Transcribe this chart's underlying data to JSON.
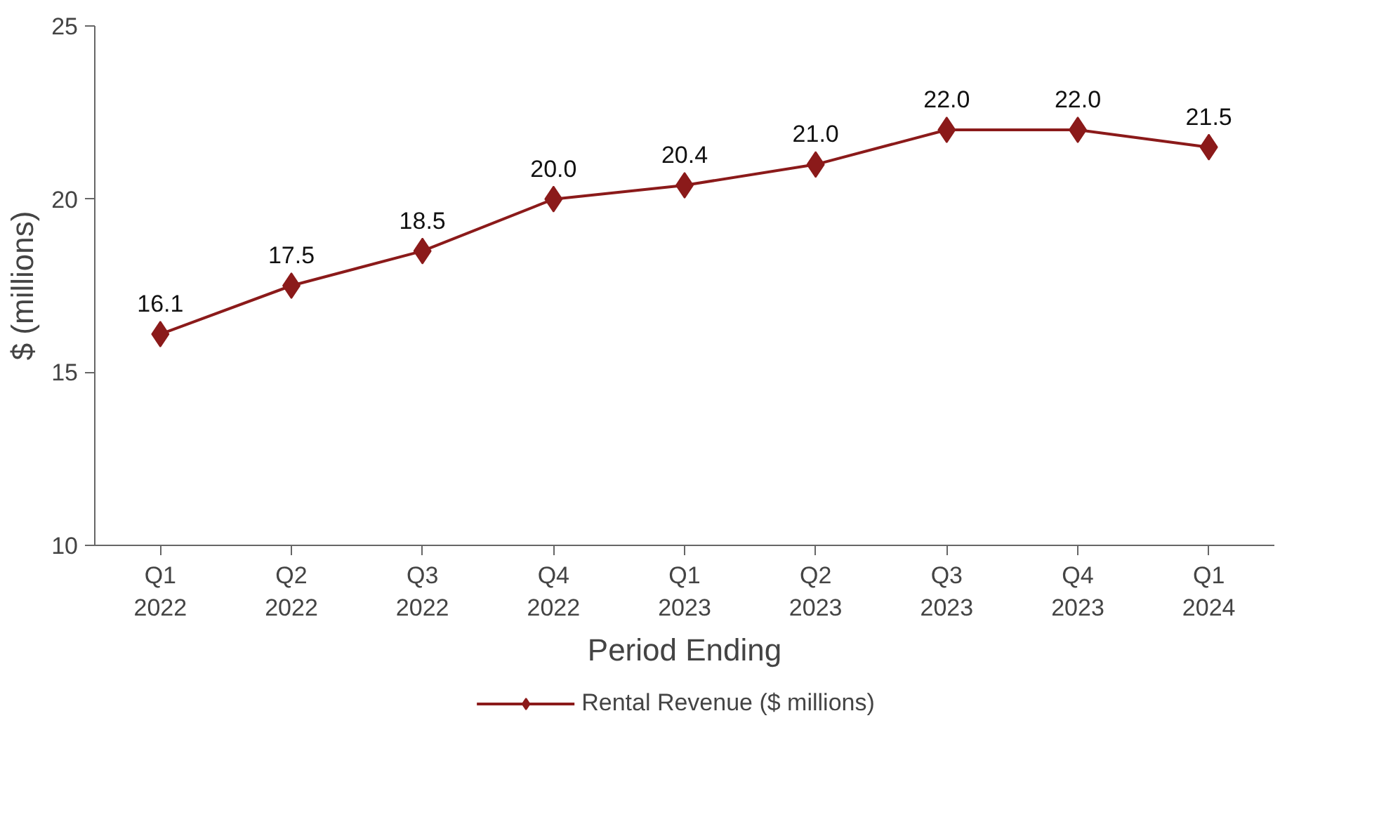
{
  "chart_data": {
    "type": "line",
    "xlabel": "Period Ending",
    "ylabel": "$ (millions)",
    "categories": [
      "Q1\n2022",
      "Q2\n2022",
      "Q3\n2022",
      "Q4\n2022",
      "Q1\n2023",
      "Q2\n2023",
      "Q3\n2023",
      "Q4\n2023",
      "Q1\n2024"
    ],
    "series": [
      {
        "name": "Rental Revenue ($ millions)",
        "color": "#8b1a1a",
        "values": [
          16.1,
          17.5,
          18.5,
          20.0,
          20.4,
          21.0,
          22.0,
          22.0,
          21.5
        ],
        "value_labels": [
          "16.1",
          "17.5",
          "18.5",
          "20.0",
          "20.4",
          "21.0",
          "22.0",
          "22.0",
          "21.5"
        ]
      }
    ],
    "ylim": [
      10,
      25
    ],
    "yticks": [
      10,
      15,
      20,
      25
    ],
    "grid": false,
    "legend": "bottom",
    "marker": "diamond",
    "line_style": "solid"
  }
}
